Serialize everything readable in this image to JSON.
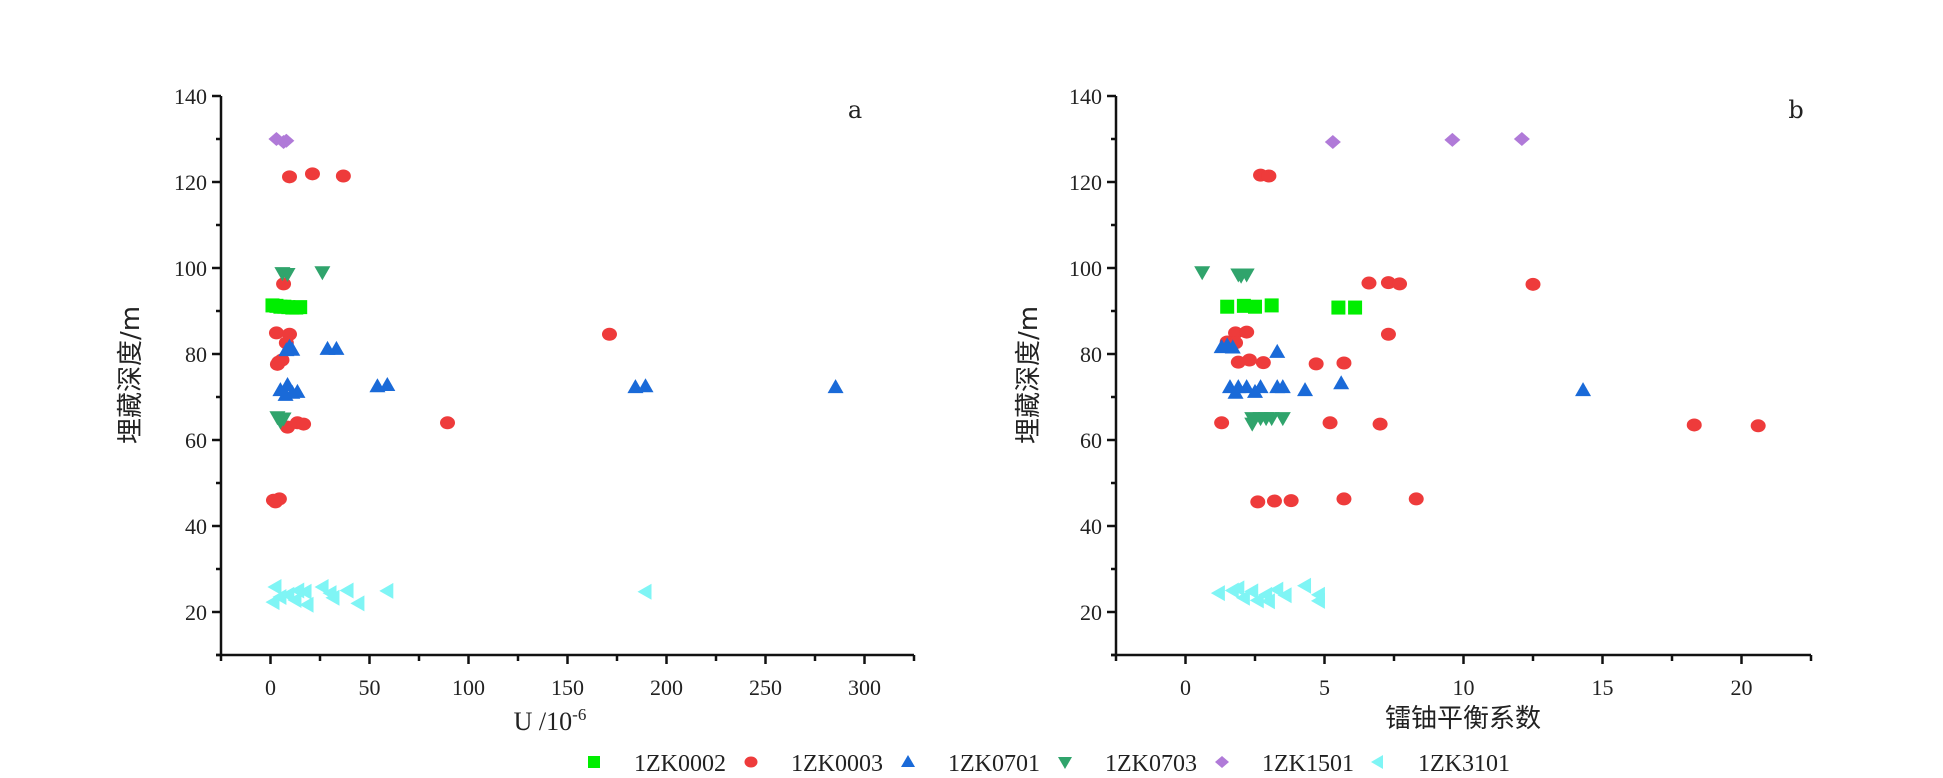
{
  "series_styles": [
    {
      "name": "1ZK0002",
      "marker": "square",
      "color": "#00ee00"
    },
    {
      "name": "1ZK0003",
      "marker": "circle",
      "color": "#ee3b3b"
    },
    {
      "name": "1ZK0701",
      "marker": "triangle-up",
      "color": "#1a6ad8"
    },
    {
      "name": "1ZK0703",
      "marker": "triangle-down",
      "color": "#30a46c"
    },
    {
      "name": "1ZK1501",
      "marker": "diamond",
      "color": "#b07ad8"
    },
    {
      "name": "1ZK3101",
      "marker": "triangle-left",
      "color": "#7ff5f5"
    }
  ],
  "legend": {
    "placement": "bottom-center",
    "entries": [
      "1ZK0002",
      "1ZK0003",
      "1ZK0701",
      "1ZK0703",
      "1ZK1501",
      "1ZK3101"
    ]
  },
  "chart_data": [
    {
      "type": "scatter",
      "panel_label": "a",
      "title": "",
      "xlabel_main": "U /10",
      "xlabel_sup": "-6",
      "ylabel": "埋藏深度/m",
      "xlim": [
        -25,
        325
      ],
      "ylim": [
        10,
        140
      ],
      "xticks": [
        0,
        50,
        100,
        150,
        200,
        250,
        300
      ],
      "xtick_labels": [
        "0",
        "50",
        "100",
        "150",
        "200",
        "250",
        "300"
      ],
      "yticks": [
        20,
        40,
        60,
        80,
        100,
        120,
        140
      ],
      "ytick_labels": [
        "20",
        "40",
        "60",
        "80",
        "100",
        "120",
        "140"
      ],
      "grid": false,
      "series": [
        {
          "name": "1ZK0002",
          "points": [
            [
              1,
              91.3
            ],
            [
              3,
              91.2
            ],
            [
              5,
              91
            ],
            [
              7,
              91
            ],
            [
              9,
              90.9
            ],
            [
              11,
              90.8
            ],
            [
              13,
              90.8
            ],
            [
              15,
              90.9
            ]
          ]
        },
        {
          "name": "1ZK0003",
          "points": [
            [
              9.6,
              121.2
            ],
            [
              21.2,
              121.9
            ],
            [
              36.8,
              121.4
            ],
            [
              6.6,
              96.3
            ],
            [
              3,
              84.9
            ],
            [
              9.6,
              84.6
            ],
            [
              8,
              82.6
            ],
            [
              171.2,
              84.6
            ],
            [
              4.1,
              78.1
            ],
            [
              5.8,
              78.6
            ],
            [
              3.5,
              77.6
            ],
            [
              8.6,
              63
            ],
            [
              13.6,
              64
            ],
            [
              16.7,
              63.7
            ],
            [
              89.4,
              64
            ],
            [
              2.5,
              45.6
            ],
            [
              4.5,
              46.3
            ],
            [
              1.5,
              46
            ]
          ]
        },
        {
          "name": "1ZK0701",
          "points": [
            [
              9.6,
              81.7
            ],
            [
              11,
              81
            ],
            [
              8,
              80.9
            ],
            [
              28.8,
              81.2
            ],
            [
              33.3,
              81.2
            ],
            [
              5,
              71.6
            ],
            [
              8.6,
              72.8
            ],
            [
              13.6,
              71.2
            ],
            [
              7.6,
              70.5
            ],
            [
              11,
              71
            ],
            [
              54,
              72.5
            ],
            [
              59,
              72.8
            ],
            [
              184.3,
              72.3
            ],
            [
              189.4,
              72.5
            ],
            [
              285.4,
              72.3
            ]
          ]
        },
        {
          "name": "1ZK0703",
          "points": [
            [
              6,
              98.8
            ],
            [
              8.6,
              98.6
            ],
            [
              26.2,
              99
            ],
            [
              3.5,
              65.3
            ],
            [
              6.6,
              65
            ],
            [
              5,
              64.3
            ]
          ]
        },
        {
          "name": "1ZK1501",
          "points": [
            [
              3,
              130
            ],
            [
              6.6,
              129.3
            ],
            [
              8,
              129.6
            ]
          ]
        },
        {
          "name": "1ZK3101",
          "points": [
            [
              2.5,
              25.8
            ],
            [
              1.5,
              22.3
            ],
            [
              9,
              24
            ],
            [
              12.6,
              22.8
            ],
            [
              17.7,
              24.7
            ],
            [
              18.7,
              21.7
            ],
            [
              5,
              23.5
            ],
            [
              14,
              25
            ],
            [
              26.3,
              25.8
            ],
            [
              30.3,
              24.4
            ],
            [
              31.8,
              23.3
            ],
            [
              38.9,
              25
            ],
            [
              44.4,
              22
            ],
            [
              59,
              24.9
            ],
            [
              189.4,
              24.7
            ]
          ]
        }
      ]
    },
    {
      "type": "scatter",
      "panel_label": "b",
      "title": "",
      "xlabel_main": "镭铀平衡系数",
      "xlabel_sup": "",
      "ylabel": "埋藏深度/m",
      "xlim": [
        -2.5,
        22.5
      ],
      "ylim": [
        10,
        140
      ],
      "xticks": [
        0,
        5,
        10,
        15,
        20
      ],
      "xtick_labels": [
        "0",
        "5",
        "10",
        "15",
        "20"
      ],
      "yticks": [
        20,
        40,
        60,
        80,
        100,
        120,
        140
      ],
      "ytick_labels": [
        "20",
        "40",
        "60",
        "80",
        "100",
        "120",
        "140"
      ],
      "grid": false,
      "series": [
        {
          "name": "1ZK0002",
          "points": [
            [
              1.5,
              91
            ],
            [
              2.1,
              91.2
            ],
            [
              2.5,
              91
            ],
            [
              3.1,
              91.3
            ],
            [
              5.5,
              90.8
            ],
            [
              6.1,
              90.8
            ]
          ]
        },
        {
          "name": "1ZK0003",
          "points": [
            [
              2.7,
              121.6
            ],
            [
              3.0,
              121.4
            ],
            [
              6.6,
              96.5
            ],
            [
              7.3,
              96.6
            ],
            [
              7.7,
              96.3
            ],
            [
              12.5,
              96.2
            ],
            [
              7.3,
              84.6
            ],
            [
              1.8,
              84.9
            ],
            [
              2.2,
              85.1
            ],
            [
              1.5,
              82.8
            ],
            [
              1.8,
              82.6
            ],
            [
              1.9,
              78.1
            ],
            [
              2.3,
              78.6
            ],
            [
              2.8,
              78
            ],
            [
              4.7,
              77.7
            ],
            [
              5.7,
              77.9
            ],
            [
              1.3,
              64
            ],
            [
              5.2,
              64
            ],
            [
              7.0,
              63.7
            ],
            [
              18.3,
              63.5
            ],
            [
              20.6,
              63.3
            ],
            [
              2.6,
              45.6
            ],
            [
              3.2,
              45.8
            ],
            [
              3.8,
              45.9
            ],
            [
              5.7,
              46.3
            ],
            [
              8.3,
              46.3
            ]
          ]
        },
        {
          "name": "1ZK0701",
          "points": [
            [
              1.3,
              81.6
            ],
            [
              1.5,
              82
            ],
            [
              1.7,
              81.5
            ],
            [
              3.3,
              80.5
            ],
            [
              1.6,
              72.3
            ],
            [
              1.9,
              72.3
            ],
            [
              2.2,
              72.3
            ],
            [
              2.7,
              72.3
            ],
            [
              3.3,
              72.3
            ],
            [
              3.5,
              72.3
            ],
            [
              1.8,
              71
            ],
            [
              2.5,
              71.2
            ],
            [
              4.3,
              71.6
            ],
            [
              5.6,
              73.2
            ],
            [
              14.3,
              71.6
            ]
          ]
        },
        {
          "name": "1ZK0703",
          "points": [
            [
              0.6,
              99
            ],
            [
              1.9,
              98.5
            ],
            [
              2.2,
              98.5
            ],
            [
              2.0,
              98.2
            ],
            [
              2.4,
              65.1
            ],
            [
              2.7,
              65.1
            ],
            [
              2.9,
              65.1
            ],
            [
              3.1,
              65.1
            ],
            [
              3.5,
              65.1
            ],
            [
              2.4,
              63.8
            ]
          ]
        },
        {
          "name": "1ZK1501",
          "points": [
            [
              5.3,
              129.3
            ],
            [
              9.6,
              129.8
            ],
            [
              12.1,
              130
            ]
          ]
        },
        {
          "name": "1ZK3101",
          "points": [
            [
              1.2,
              24.4
            ],
            [
              1.7,
              25
            ],
            [
              1.9,
              25.5
            ],
            [
              2.1,
              23.3
            ],
            [
              2.4,
              24.8
            ],
            [
              2.6,
              22.7
            ],
            [
              2.9,
              24
            ],
            [
              3.0,
              22.5
            ],
            [
              3.3,
              25.2
            ],
            [
              3.6,
              23.9
            ],
            [
              4.3,
              26.1
            ],
            [
              4.8,
              24
            ],
            [
              4.8,
              22.6
            ]
          ]
        }
      ]
    }
  ]
}
